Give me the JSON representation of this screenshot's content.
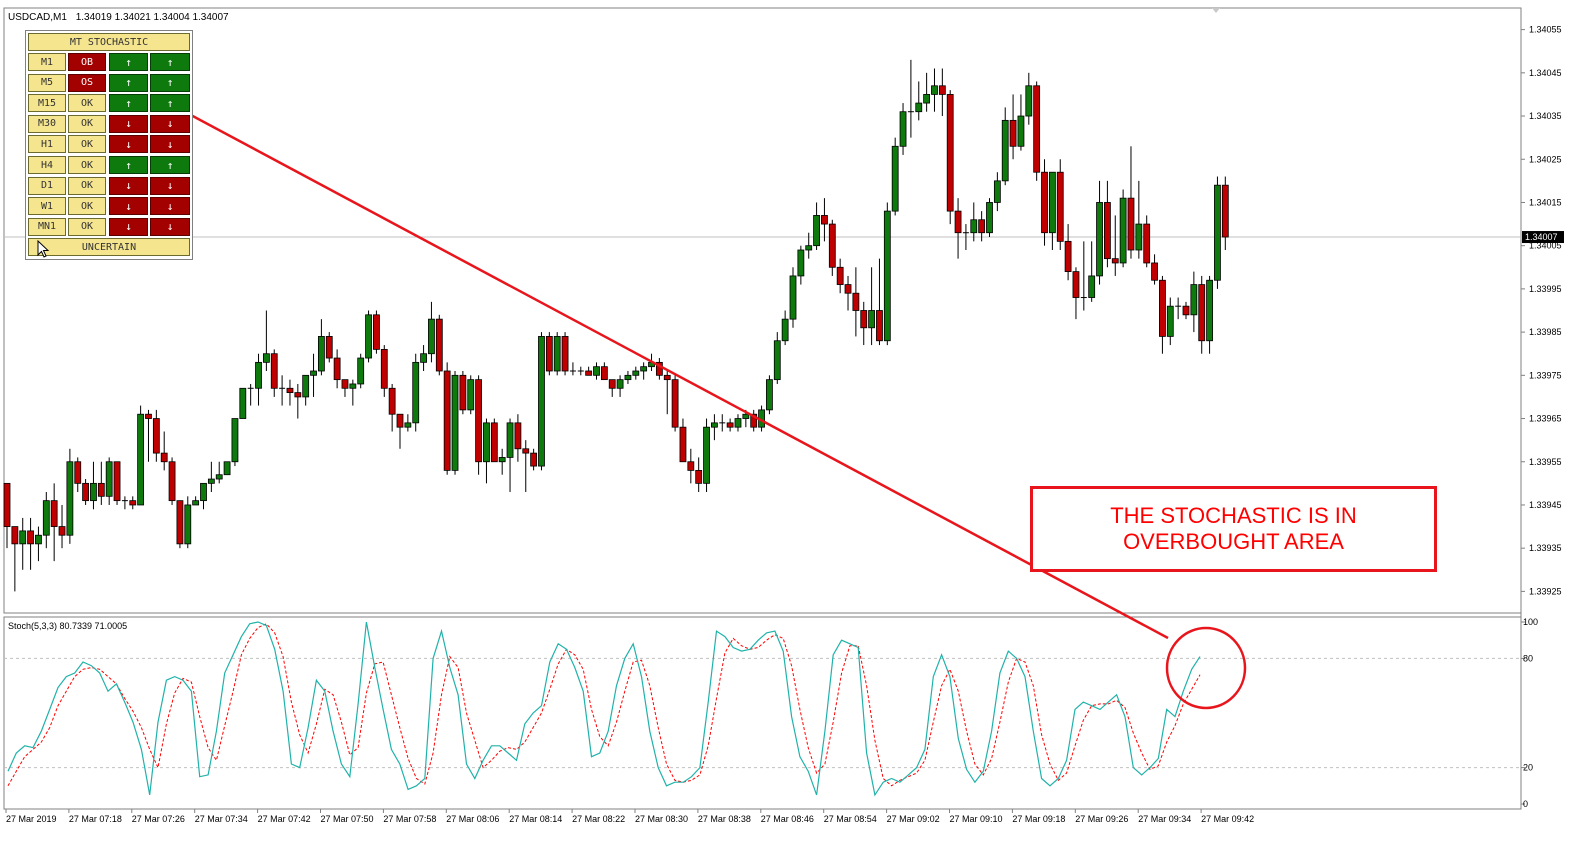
{
  "header": {
    "symbol_tf": "USDCAD,M1",
    "ohlc": "1.34019 1.34021 1.34004 1.34007"
  },
  "indicator": {
    "label": "Stoch(5,3,3) 80.7339 71.0005",
    "levels": [
      "100",
      "80",
      "20",
      "0"
    ]
  },
  "price_axis": {
    "ticks": [
      "1.34055",
      "1.34045",
      "1.34035",
      "1.34025",
      "1.34015",
      "1.34005",
      "1.33995",
      "1.33985",
      "1.33975",
      "1.33965",
      "1.33955",
      "1.33945",
      "1.33935",
      "1.33925"
    ],
    "current_price": "1.34007"
  },
  "time_axis": {
    "ticks": [
      "27 Mar 2019",
      "27 Mar 07:18",
      "27 Mar 07:26",
      "27 Mar 07:34",
      "27 Mar 07:42",
      "27 Mar 07:50",
      "27 Mar 07:58",
      "27 Mar 08:06",
      "27 Mar 08:14",
      "27 Mar 08:22",
      "27 Mar 08:30",
      "27 Mar 08:38",
      "27 Mar 08:46",
      "27 Mar 08:54",
      "27 Mar 09:02",
      "27 Mar 09:10",
      "27 Mar 09:18",
      "27 Mar 09:26",
      "27 Mar 09:34",
      "27 Mar 09:42"
    ]
  },
  "panel": {
    "title": "MT STOCHASTIC",
    "footer": "UNCERTAIN",
    "rows": [
      {
        "tf": "M1",
        "status": "OB",
        "a": "↑",
        "b": "↑"
      },
      {
        "tf": "M5",
        "status": "OS",
        "a": "↑",
        "b": "↑"
      },
      {
        "tf": "M15",
        "status": "OK",
        "a": "↑",
        "b": "↑"
      },
      {
        "tf": "M30",
        "status": "OK",
        "a": "↓",
        "b": "↓"
      },
      {
        "tf": "H1",
        "status": "OK",
        "a": "↓",
        "b": "↓"
      },
      {
        "tf": "H4",
        "status": "OK",
        "a": "↑",
        "b": "↑"
      },
      {
        "tf": "D1",
        "status": "OK",
        "a": "↓",
        "b": "↓"
      },
      {
        "tf": "W1",
        "status": "OK",
        "a": "↓",
        "b": "↓"
      },
      {
        "tf": "MN1",
        "status": "OK",
        "a": "↓",
        "b": "↓"
      }
    ]
  },
  "callout": {
    "line1": "THE STOCHASTIC IS IN",
    "line2": "OVERBOUGHT AREA"
  },
  "colors": {
    "bull": "#0e7a0e",
    "bear": "#c00000",
    "stoch_main": "#20b2aa",
    "stoch_signal": "#ff0000",
    "annotation": "#e8161c"
  },
  "chart_data": {
    "type": "candlestick",
    "price_range": [
      1.3392,
      1.3406
    ],
    "stoch_range": [
      0,
      100
    ],
    "candles": [
      [
        1.3395,
        1.3395,
        1.33935,
        1.3394
      ],
      [
        1.3394,
        1.3394,
        1.33925,
        1.33936
      ],
      [
        1.33936,
        1.33942,
        1.3393,
        1.33939
      ],
      [
        1.33939,
        1.33942,
        1.3393,
        1.33936
      ],
      [
        1.33936,
        1.3394,
        1.33932,
        1.33938
      ],
      [
        1.33938,
        1.33948,
        1.33935,
        1.33946
      ],
      [
        1.33946,
        1.3395,
        1.33932,
        1.3394
      ],
      [
        1.3394,
        1.33945,
        1.33935,
        1.33938
      ],
      [
        1.33938,
        1.33958,
        1.33936,
        1.33955
      ],
      [
        1.33955,
        1.33956,
        1.33948,
        1.3395
      ],
      [
        1.3395,
        1.33951,
        1.33945,
        1.33946
      ],
      [
        1.33946,
        1.33955,
        1.33944,
        1.3395
      ],
      [
        1.3395,
        1.33955,
        1.33945,
        1.33947
      ],
      [
        1.33947,
        1.33956,
        1.33945,
        1.33955
      ],
      [
        1.33955,
        1.33955,
        1.33945,
        1.33946
      ],
      [
        1.33946,
        1.33947,
        1.33944,
        1.33946
      ],
      [
        1.33946,
        1.33947,
        1.33944,
        1.33945
      ],
      [
        1.33945,
        1.33968,
        1.33945,
        1.33966
      ],
      [
        1.33966,
        1.33967,
        1.33955,
        1.33965
      ],
      [
        1.33965,
        1.33967,
        1.33955,
        1.33957
      ],
      [
        1.33957,
        1.33962,
        1.33953,
        1.33955
      ],
      [
        1.33955,
        1.33956,
        1.33945,
        1.33946
      ],
      [
        1.33946,
        1.33946,
        1.33935,
        1.33936
      ],
      [
        1.33936,
        1.33947,
        1.33935,
        1.33945
      ],
      [
        1.33945,
        1.33947,
        1.33945,
        1.33946
      ],
      [
        1.33946,
        1.3395,
        1.33944,
        1.3395
      ],
      [
        1.3395,
        1.33955,
        1.33948,
        1.33951
      ],
      [
        1.33951,
        1.33955,
        1.3395,
        1.33952
      ],
      [
        1.33952,
        1.33955,
        1.33952,
        1.33955
      ],
      [
        1.33955,
        1.33965,
        1.33954,
        1.33965
      ],
      [
        1.33965,
        1.33972,
        1.33965,
        1.33972
      ],
      [
        1.33972,
        1.33973,
        1.33968,
        1.33972
      ],
      [
        1.33972,
        1.3398,
        1.33968,
        1.33978
      ],
      [
        1.33978,
        1.3399,
        1.33976,
        1.3398
      ],
      [
        1.3398,
        1.33981,
        1.3397,
        1.33972
      ],
      [
        1.33972,
        1.33975,
        1.33968,
        1.33972
      ],
      [
        1.33972,
        1.33974,
        1.33968,
        1.33971
      ],
      [
        1.33971,
        1.33973,
        1.33965,
        1.3397
      ],
      [
        1.3397,
        1.33975,
        1.33968,
        1.33975
      ],
      [
        1.33975,
        1.3398,
        1.3397,
        1.33976
      ],
      [
        1.33976,
        1.33988,
        1.33975,
        1.33984
      ],
      [
        1.33984,
        1.33985,
        1.33978,
        1.33979
      ],
      [
        1.33979,
        1.33981,
        1.33972,
        1.33974
      ],
      [
        1.33974,
        1.33974,
        1.3397,
        1.33972
      ],
      [
        1.33972,
        1.33974,
        1.33968,
        1.33973
      ],
      [
        1.33973,
        1.3398,
        1.33972,
        1.33979
      ],
      [
        1.33979,
        1.3399,
        1.33978,
        1.33989
      ],
      [
        1.33989,
        1.3399,
        1.3398,
        1.33981
      ],
      [
        1.33981,
        1.33982,
        1.3397,
        1.33972
      ],
      [
        1.33972,
        1.33973,
        1.33962,
        1.33966
      ],
      [
        1.33966,
        1.33966,
        1.33958,
        1.33963
      ],
      [
        1.33963,
        1.33966,
        1.33962,
        1.33964
      ],
      [
        1.33964,
        1.3398,
        1.33962,
        1.33978
      ],
      [
        1.33978,
        1.33982,
        1.33976,
        1.3398
      ],
      [
        1.3398,
        1.33992,
        1.33978,
        1.33988
      ],
      [
        1.33988,
        1.33989,
        1.33975,
        1.33976
      ],
      [
        1.33976,
        1.33978,
        1.33952,
        1.33953
      ],
      [
        1.33953,
        1.33976,
        1.33952,
        1.33975
      ],
      [
        1.33975,
        1.33976,
        1.33966,
        1.33967
      ],
      [
        1.33967,
        1.33975,
        1.33966,
        1.33974
      ],
      [
        1.33974,
        1.33975,
        1.33952,
        1.33955
      ],
      [
        1.33955,
        1.33965,
        1.3395,
        1.33964
      ],
      [
        1.33964,
        1.33965,
        1.33955,
        1.33955
      ],
      [
        1.33955,
        1.33958,
        1.33952,
        1.33956
      ],
      [
        1.33956,
        1.33965,
        1.33948,
        1.33964
      ],
      [
        1.33964,
        1.33966,
        1.33955,
        1.33958
      ],
      [
        1.33958,
        1.3396,
        1.33948,
        1.33957
      ],
      [
        1.33957,
        1.33958,
        1.33953,
        1.33954
      ],
      [
        1.33954,
        1.33985,
        1.33953,
        1.33984
      ],
      [
        1.33984,
        1.33985,
        1.33975,
        1.33976
      ],
      [
        1.33976,
        1.33985,
        1.33975,
        1.33984
      ],
      [
        1.33984,
        1.33985,
        1.33975,
        1.33976
      ],
      [
        1.33976,
        1.33978,
        1.33975,
        1.33976
      ],
      [
        1.33976,
        1.33977,
        1.33975,
        1.33976
      ],
      [
        1.33976,
        1.33977,
        1.33975,
        1.33975
      ],
      [
        1.33975,
        1.33978,
        1.33974,
        1.33977
      ],
      [
        1.33977,
        1.33978,
        1.33974,
        1.33974
      ],
      [
        1.33974,
        1.33974,
        1.3397,
        1.33972
      ],
      [
        1.33972,
        1.33975,
        1.3397,
        1.33974
      ],
      [
        1.33974,
        1.33976,
        1.33973,
        1.33975
      ],
      [
        1.33975,
        1.33977,
        1.33974,
        1.33976
      ],
      [
        1.33976,
        1.33978,
        1.33974,
        1.33977
      ],
      [
        1.33977,
        1.3398,
        1.33976,
        1.33978
      ],
      [
        1.33978,
        1.33979,
        1.33974,
        1.33975
      ],
      [
        1.33975,
        1.33976,
        1.33966,
        1.33974
      ],
      [
        1.33974,
        1.33975,
        1.33962,
        1.33963
      ],
      [
        1.33963,
        1.33965,
        1.33955,
        1.33955
      ],
      [
        1.33955,
        1.33958,
        1.3395,
        1.33953
      ],
      [
        1.33953,
        1.33956,
        1.33948,
        1.3395
      ],
      [
        1.3395,
        1.33965,
        1.33948,
        1.33963
      ],
      [
        1.33963,
        1.33966,
        1.3396,
        1.33964
      ],
      [
        1.33964,
        1.33966,
        1.33962,
        1.33964
      ],
      [
        1.33964,
        1.33965,
        1.33962,
        1.33963
      ],
      [
        1.33963,
        1.33966,
        1.33962,
        1.33965
      ],
      [
        1.33965,
        1.33967,
        1.33963,
        1.33966
      ],
      [
        1.33966,
        1.33967,
        1.33962,
        1.33963
      ],
      [
        1.33963,
        1.33968,
        1.33962,
        1.33967
      ],
      [
        1.33967,
        1.33975,
        1.33966,
        1.33974
      ],
      [
        1.33974,
        1.33985,
        1.33973,
        1.33983
      ],
      [
        1.33983,
        1.3399,
        1.33982,
        1.33988
      ],
      [
        1.33988,
        1.34,
        1.33986,
        1.33998
      ],
      [
        1.33998,
        1.34005,
        1.33996,
        1.34004
      ],
      [
        1.34004,
        1.34008,
        1.34002,
        1.34005
      ],
      [
        1.34005,
        1.34015,
        1.34004,
        1.34012
      ],
      [
        1.34012,
        1.34016,
        1.34006,
        1.3401
      ],
      [
        1.3401,
        1.34011,
        1.33998,
        1.34
      ],
      [
        1.34,
        1.34002,
        1.33994,
        1.33996
      ],
      [
        1.33996,
        1.33998,
        1.3399,
        1.33994
      ],
      [
        1.33994,
        1.34,
        1.33984,
        1.3399
      ],
      [
        1.3399,
        1.33992,
        1.33982,
        1.33986
      ],
      [
        1.33986,
        1.34,
        1.33982,
        1.3399
      ],
      [
        1.3399,
        1.34002,
        1.33982,
        1.33983
      ],
      [
        1.33983,
        1.34015,
        1.33982,
        1.34013
      ],
      [
        1.34013,
        1.3403,
        1.34012,
        1.34028
      ],
      [
        1.34028,
        1.34038,
        1.34026,
        1.34036
      ],
      [
        1.34036,
        1.34048,
        1.3403,
        1.34036
      ],
      [
        1.34036,
        1.34043,
        1.34034,
        1.34038
      ],
      [
        1.34038,
        1.34045,
        1.34036,
        1.3404
      ],
      [
        1.3404,
        1.34046,
        1.34036,
        1.34042
      ],
      [
        1.34042,
        1.34046,
        1.34035,
        1.3404
      ],
      [
        1.3404,
        1.34041,
        1.3401,
        1.34013
      ],
      [
        1.34013,
        1.34016,
        1.34002,
        1.34008
      ],
      [
        1.34008,
        1.3401,
        1.34004,
        1.34008
      ],
      [
        1.34008,
        1.34015,
        1.34006,
        1.34011
      ],
      [
        1.34011,
        1.34013,
        1.34006,
        1.34008
      ],
      [
        1.34008,
        1.34016,
        1.34007,
        1.34015
      ],
      [
        1.34015,
        1.34022,
        1.34013,
        1.3402
      ],
      [
        1.3402,
        1.34037,
        1.34019,
        1.34034
      ],
      [
        1.34034,
        1.3404,
        1.34025,
        1.34028
      ],
      [
        1.34028,
        1.3404,
        1.34027,
        1.34035
      ],
      [
        1.34035,
        1.34045,
        1.34033,
        1.34042
      ],
      [
        1.34042,
        1.34043,
        1.3402,
        1.34022
      ],
      [
        1.34022,
        1.34025,
        1.34005,
        1.34008
      ],
      [
        1.34008,
        1.34022,
        1.34004,
        1.34022
      ],
      [
        1.34022,
        1.34025,
        1.34004,
        1.34006
      ],
      [
        1.34006,
        1.3401,
        1.33997,
        1.33999
      ],
      [
        1.33999,
        1.34,
        1.33988,
        1.33993
      ],
      [
        1.33993,
        1.34006,
        1.3399,
        1.33993
      ],
      [
        1.33993,
        1.34006,
        1.33992,
        1.33998
      ],
      [
        1.33998,
        1.3402,
        1.33996,
        1.34015
      ],
      [
        1.34015,
        1.3402,
        1.34,
        1.34002
      ],
      [
        1.34002,
        1.34012,
        1.33998,
        1.34001
      ],
      [
        1.34001,
        1.34018,
        1.34,
        1.34016
      ],
      [
        1.34016,
        1.34028,
        1.34002,
        1.34004
      ],
      [
        1.34004,
        1.3402,
        1.34002,
        1.3401
      ],
      [
        1.3401,
        1.34012,
        1.34,
        1.34001
      ],
      [
        1.34001,
        1.34003,
        1.33996,
        1.33997
      ],
      [
        1.33997,
        1.33998,
        1.3398,
        1.33984
      ],
      [
        1.33984,
        1.33993,
        1.33982,
        1.33991
      ],
      [
        1.33991,
        1.33993,
        1.33988,
        1.33991
      ],
      [
        1.33991,
        1.33992,
        1.33988,
        1.33989
      ],
      [
        1.33989,
        1.33999,
        1.33985,
        1.33996
      ],
      [
        1.33996,
        1.33998,
        1.3398,
        1.33983
      ],
      [
        1.33983,
        1.33998,
        1.3398,
        1.33997
      ],
      [
        1.33997,
        1.34021,
        1.33995,
        1.34019
      ],
      [
        1.34019,
        1.34021,
        1.34004,
        1.34007
      ]
    ],
    "stoch_main": [
      18,
      28,
      32,
      31,
      40,
      52,
      64,
      70,
      72,
      78,
      76,
      72,
      62,
      66,
      56,
      45,
      30,
      5,
      45,
      68,
      70,
      68,
      62,
      15,
      16,
      40,
      72,
      82,
      92,
      99,
      100,
      98,
      85,
      62,
      22,
      20,
      42,
      68,
      62,
      40,
      22,
      15,
      55,
      100,
      75,
      52,
      30,
      22,
      8,
      10,
      14,
      80,
      95,
      75,
      60,
      22,
      14,
      24,
      32,
      32,
      28,
      24,
      44,
      50,
      54,
      78,
      88,
      85,
      75,
      62,
      26,
      28,
      40,
      65,
      80,
      88,
      70,
      40,
      20,
      10,
      12,
      12,
      15,
      20,
      56,
      95,
      92,
      86,
      84,
      85,
      90,
      94,
      95,
      84,
      48,
      26,
      18,
      5,
      40,
      82,
      90,
      88,
      86,
      28,
      5,
      12,
      14,
      12,
      16,
      20,
      30,
      70,
      82,
      70,
      36,
      19,
      12,
      18,
      40,
      72,
      84,
      80,
      70,
      40,
      14,
      10,
      14,
      24,
      52,
      56,
      54,
      52,
      56,
      60,
      48,
      20,
      16,
      20,
      25,
      52,
      48,
      62,
      74,
      81
    ],
    "stoch_signal": [
      10,
      18,
      26,
      30,
      34,
      42,
      54,
      62,
      70,
      74,
      75,
      74,
      70,
      66,
      58,
      51,
      42,
      30,
      20,
      44,
      61,
      69,
      67,
      48,
      31,
      24,
      43,
      62,
      82,
      91,
      97,
      99,
      94,
      81,
      56,
      38,
      28,
      44,
      63,
      60,
      45,
      27,
      31,
      61,
      77,
      78,
      60,
      42,
      25,
      14,
      11,
      28,
      60,
      81,
      75,
      50,
      35,
      20,
      24,
      29,
      31,
      30,
      34,
      42,
      50,
      63,
      77,
      85,
      82,
      74,
      52,
      37,
      32,
      45,
      62,
      78,
      79,
      65,
      42,
      22,
      13,
      12,
      13,
      16,
      32,
      58,
      83,
      91,
      87,
      85,
      86,
      90,
      93,
      91,
      76,
      52,
      31,
      17,
      22,
      45,
      72,
      87,
      87,
      65,
      35,
      14,
      10,
      13,
      15,
      17,
      24,
      45,
      65,
      74,
      62,
      40,
      22,
      16,
      25,
      45,
      67,
      80,
      78,
      65,
      38,
      22,
      13,
      17,
      32,
      46,
      54,
      55,
      55,
      57,
      53,
      39,
      28,
      19,
      21,
      34,
      43,
      55,
      63,
      71
    ]
  }
}
